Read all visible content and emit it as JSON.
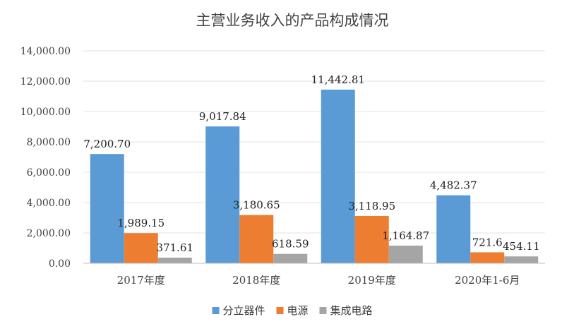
{
  "chart_data": {
    "type": "bar",
    "title": "主营业务收入的产品构成情况",
    "categories": [
      "2017年度",
      "2018年度",
      "2019年度",
      "2020年1-6月"
    ],
    "series": [
      {
        "name": "分立器件",
        "color": "#5b9bd5",
        "values": [
          7200.7,
          9017.84,
          11442.81,
          4482.37
        ],
        "labels": [
          "7,200.70",
          "9,017.84",
          "11,442.81",
          "4,482.37"
        ]
      },
      {
        "name": "电源",
        "color": "#ed7d31",
        "values": [
          1989.15,
          3180.65,
          3118.95,
          721.6
        ],
        "labels": [
          "1,989.15",
          "3,180.65",
          "3,118.95",
          "721.6"
        ]
      },
      {
        "name": "集成电路",
        "color": "#a5a5a5",
        "values": [
          371.61,
          618.59,
          1164.87,
          454.11
        ],
        "labels": [
          "371.61",
          "618.59",
          "1,164.87",
          "454.11"
        ]
      }
    ],
    "ylim": [
      0,
      14000
    ],
    "yticks": [
      0,
      2000,
      4000,
      6000,
      8000,
      10000,
      12000,
      14000
    ],
    "ytick_labels": [
      "0.00",
      "2,000.00",
      "4,000.00",
      "6,000.00",
      "8,000.00",
      "10,000.00",
      "12,000.00",
      "14,000.00"
    ],
    "grid": true,
    "legend": "bottom"
  }
}
